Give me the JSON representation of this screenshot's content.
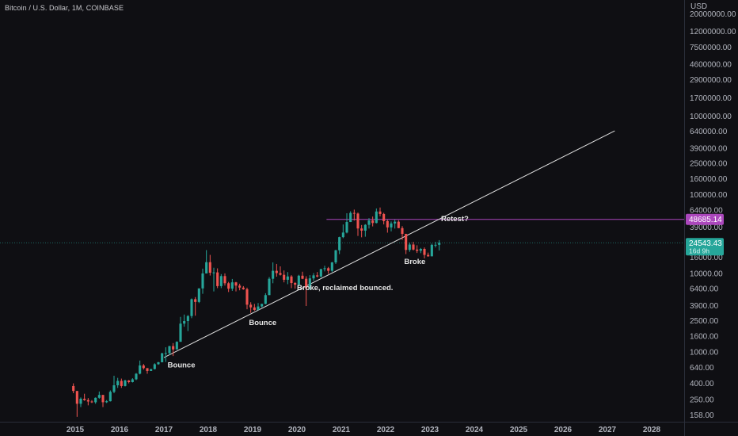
{
  "header": {
    "title": "Bitcoin / U.S. Dollar, 1M, COINBASE"
  },
  "colors": {
    "up": "#26a69a",
    "down": "#ef5350",
    "trendline": "#e0e0e0",
    "resistance": "#ab47bc",
    "price_line": "#26a69a",
    "background": "#0f0f13"
  },
  "chart_data": {
    "type": "candlestick",
    "title": "Bitcoin / U.S. Dollar, 1M, COINBASE",
    "currency_label": "USD",
    "y_scale": "log",
    "ylim": [
      130,
      30000000
    ],
    "xlim": [
      "2014-10",
      "2028-08"
    ],
    "x_ticks": [
      "2015",
      "2016",
      "2017",
      "2018",
      "2019",
      "2020",
      "2021",
      "2022",
      "2023",
      "2024",
      "2025",
      "2026",
      "2027",
      "2028"
    ],
    "y_ticks": [
      "20000000.00",
      "12000000.00",
      "7500000.00",
      "4600000.00",
      "2900000.00",
      "1700000.00",
      "1000000.00",
      "640000.00",
      "390000.00",
      "250000.00",
      "160000.00",
      "100000.00",
      "64000.00",
      "39000.00",
      "24000.00",
      "16000.00",
      "10000.00",
      "6400.00",
      "3900.00",
      "2500.00",
      "1600.00",
      "1000.00",
      "640.00",
      "400.00",
      "250.00",
      "158.00"
    ],
    "candles": [
      {
        "t": "2014-12",
        "o": 370,
        "h": 400,
        "l": 300,
        "c": 320
      },
      {
        "t": "2015-01",
        "o": 320,
        "h": 320,
        "l": 150,
        "c": 220
      },
      {
        "t": "2015-02",
        "o": 220,
        "h": 265,
        "l": 200,
        "c": 255
      },
      {
        "t": "2015-03",
        "o": 255,
        "h": 295,
        "l": 240,
        "c": 245
      },
      {
        "t": "2015-04",
        "o": 245,
        "h": 260,
        "l": 210,
        "c": 235
      },
      {
        "t": "2015-05",
        "o": 235,
        "h": 245,
        "l": 225,
        "c": 230
      },
      {
        "t": "2015-06",
        "o": 230,
        "h": 265,
        "l": 220,
        "c": 262
      },
      {
        "t": "2015-07",
        "o": 262,
        "h": 315,
        "l": 255,
        "c": 285
      },
      {
        "t": "2015-08",
        "o": 285,
        "h": 285,
        "l": 200,
        "c": 230
      },
      {
        "t": "2015-09",
        "o": 230,
        "h": 245,
        "l": 225,
        "c": 237
      },
      {
        "t": "2015-10",
        "o": 237,
        "h": 325,
        "l": 235,
        "c": 312
      },
      {
        "t": "2015-11",
        "o": 312,
        "h": 500,
        "l": 300,
        "c": 378
      },
      {
        "t": "2015-12",
        "o": 378,
        "h": 470,
        "l": 350,
        "c": 430
      },
      {
        "t": "2016-01",
        "o": 430,
        "h": 460,
        "l": 350,
        "c": 370
      },
      {
        "t": "2016-02",
        "o": 370,
        "h": 445,
        "l": 365,
        "c": 435
      },
      {
        "t": "2016-03",
        "o": 435,
        "h": 440,
        "l": 400,
        "c": 415
      },
      {
        "t": "2016-04",
        "o": 415,
        "h": 465,
        "l": 410,
        "c": 450
      },
      {
        "t": "2016-05",
        "o": 450,
        "h": 540,
        "l": 440,
        "c": 530
      },
      {
        "t": "2016-06",
        "o": 530,
        "h": 780,
        "l": 520,
        "c": 675
      },
      {
        "t": "2016-07",
        "o": 675,
        "h": 705,
        "l": 600,
        "c": 625
      },
      {
        "t": "2016-08",
        "o": 625,
        "h": 620,
        "l": 530,
        "c": 575
      },
      {
        "t": "2016-09",
        "o": 575,
        "h": 610,
        "l": 590,
        "c": 608
      },
      {
        "t": "2016-10",
        "o": 608,
        "h": 720,
        "l": 600,
        "c": 700
      },
      {
        "t": "2016-11",
        "o": 700,
        "h": 750,
        "l": 690,
        "c": 742
      },
      {
        "t": "2016-12",
        "o": 742,
        "h": 980,
        "l": 740,
        "c": 963
      },
      {
        "t": "2017-01",
        "o": 963,
        "h": 1150,
        "l": 750,
        "c": 970
      },
      {
        "t": "2017-02",
        "o": 970,
        "h": 1200,
        "l": 920,
        "c": 1190
      },
      {
        "t": "2017-03",
        "o": 1190,
        "h": 1300,
        "l": 890,
        "c": 1080
      },
      {
        "t": "2017-04",
        "o": 1080,
        "h": 1370,
        "l": 1080,
        "c": 1350
      },
      {
        "t": "2017-05",
        "o": 1350,
        "h": 2800,
        "l": 1350,
        "c": 2300
      },
      {
        "t": "2017-06",
        "o": 2300,
        "h": 3000,
        "l": 2100,
        "c": 2480
      },
      {
        "t": "2017-07",
        "o": 2480,
        "h": 2950,
        "l": 1850,
        "c": 2870
      },
      {
        "t": "2017-08",
        "o": 2870,
        "h": 4800,
        "l": 2700,
        "c": 4700
      },
      {
        "t": "2017-09",
        "o": 4700,
        "h": 5000,
        "l": 2900,
        "c": 4340
      },
      {
        "t": "2017-10",
        "o": 4340,
        "h": 6450,
        "l": 4200,
        "c": 6450
      },
      {
        "t": "2017-11",
        "o": 6450,
        "h": 11500,
        "l": 5500,
        "c": 10000
      },
      {
        "t": "2017-12",
        "o": 10000,
        "h": 19800,
        "l": 10000,
        "c": 13900
      },
      {
        "t": "2018-01",
        "o": 13900,
        "h": 17200,
        "l": 9400,
        "c": 10200
      },
      {
        "t": "2018-02",
        "o": 10200,
        "h": 11800,
        "l": 5900,
        "c": 10300
      },
      {
        "t": "2018-03",
        "o": 10300,
        "h": 11600,
        "l": 6500,
        "c": 6900
      },
      {
        "t": "2018-04",
        "o": 6900,
        "h": 9800,
        "l": 6500,
        "c": 9250
      },
      {
        "t": "2018-05",
        "o": 9250,
        "h": 10000,
        "l": 7000,
        "c": 7500
      },
      {
        "t": "2018-06",
        "o": 7500,
        "h": 7800,
        "l": 5800,
        "c": 6400
      },
      {
        "t": "2018-07",
        "o": 6400,
        "h": 8500,
        "l": 6000,
        "c": 7700
      },
      {
        "t": "2018-08",
        "o": 7700,
        "h": 7800,
        "l": 5900,
        "c": 7000
      },
      {
        "t": "2018-09",
        "o": 7000,
        "h": 7400,
        "l": 6100,
        "c": 6600
      },
      {
        "t": "2018-10",
        "o": 6600,
        "h": 6900,
        "l": 6200,
        "c": 6300
      },
      {
        "t": "2018-11",
        "o": 6300,
        "h": 6600,
        "l": 3500,
        "c": 4000
      },
      {
        "t": "2018-12",
        "o": 4000,
        "h": 4300,
        "l": 3150,
        "c": 3700
      },
      {
        "t": "2019-01",
        "o": 3700,
        "h": 4100,
        "l": 3350,
        "c": 3430
      },
      {
        "t": "2019-02",
        "o": 3430,
        "h": 4200,
        "l": 3400,
        "c": 3800
      },
      {
        "t": "2019-03",
        "o": 3800,
        "h": 4100,
        "l": 3700,
        "c": 4100
      },
      {
        "t": "2019-04",
        "o": 4100,
        "h": 5600,
        "l": 4050,
        "c": 5300
      },
      {
        "t": "2019-05",
        "o": 5300,
        "h": 9000,
        "l": 5300,
        "c": 8550
      },
      {
        "t": "2019-06",
        "o": 8550,
        "h": 13800,
        "l": 7500,
        "c": 10800
      },
      {
        "t": "2019-07",
        "o": 10800,
        "h": 13200,
        "l": 9100,
        "c": 10100
      },
      {
        "t": "2019-08",
        "o": 10100,
        "h": 12300,
        "l": 9400,
        "c": 9600
      },
      {
        "t": "2019-09",
        "o": 9600,
        "h": 10900,
        "l": 7700,
        "c": 8300
      },
      {
        "t": "2019-10",
        "o": 8300,
        "h": 10400,
        "l": 7300,
        "c": 9150
      },
      {
        "t": "2019-11",
        "o": 9150,
        "h": 9500,
        "l": 6500,
        "c": 7550
      },
      {
        "t": "2019-12",
        "o": 7550,
        "h": 7750,
        "l": 6400,
        "c": 7200
      },
      {
        "t": "2020-01",
        "o": 7200,
        "h": 9600,
        "l": 6850,
        "c": 9350
      },
      {
        "t": "2020-02",
        "o": 9350,
        "h": 10500,
        "l": 8450,
        "c": 8550
      },
      {
        "t": "2020-03",
        "o": 8550,
        "h": 9200,
        "l": 3850,
        "c": 6450
      },
      {
        "t": "2020-04",
        "o": 6450,
        "h": 9500,
        "l": 6150,
        "c": 8650
      },
      {
        "t": "2020-05",
        "o": 8650,
        "h": 10100,
        "l": 8100,
        "c": 9450
      },
      {
        "t": "2020-06",
        "o": 9450,
        "h": 10400,
        "l": 8900,
        "c": 9140
      },
      {
        "t": "2020-07",
        "o": 9140,
        "h": 11450,
        "l": 8900,
        "c": 11350
      },
      {
        "t": "2020-08",
        "o": 11350,
        "h": 12500,
        "l": 10600,
        "c": 11650
      },
      {
        "t": "2020-09",
        "o": 11650,
        "h": 12100,
        "l": 9900,
        "c": 10800
      },
      {
        "t": "2020-10",
        "o": 10800,
        "h": 14000,
        "l": 10400,
        "c": 13800
      },
      {
        "t": "2020-11",
        "o": 13800,
        "h": 19900,
        "l": 13200,
        "c": 19700
      },
      {
        "t": "2020-12",
        "o": 19700,
        "h": 29300,
        "l": 17600,
        "c": 28950
      },
      {
        "t": "2021-01",
        "o": 28950,
        "h": 41900,
        "l": 28100,
        "c": 33100
      },
      {
        "t": "2021-02",
        "o": 33100,
        "h": 58300,
        "l": 32300,
        "c": 45100
      },
      {
        "t": "2021-03",
        "o": 45100,
        "h": 61700,
        "l": 45000,
        "c": 58800
      },
      {
        "t": "2021-04",
        "o": 58800,
        "h": 64800,
        "l": 47000,
        "c": 57700
      },
      {
        "t": "2021-05",
        "o": 57700,
        "h": 59500,
        "l": 30000,
        "c": 37300
      },
      {
        "t": "2021-06",
        "o": 37300,
        "h": 41300,
        "l": 28800,
        "c": 35000
      },
      {
        "t": "2021-07",
        "o": 35000,
        "h": 42300,
        "l": 29300,
        "c": 41500
      },
      {
        "t": "2021-08",
        "o": 41500,
        "h": 50500,
        "l": 37300,
        "c": 47100
      },
      {
        "t": "2021-09",
        "o": 47100,
        "h": 52900,
        "l": 39600,
        "c": 43800
      },
      {
        "t": "2021-10",
        "o": 43800,
        "h": 67000,
        "l": 43300,
        "c": 61300
      },
      {
        "t": "2021-11",
        "o": 61300,
        "h": 69000,
        "l": 53300,
        "c": 57000
      },
      {
        "t": "2021-12",
        "o": 57000,
        "h": 59000,
        "l": 42000,
        "c": 46300
      },
      {
        "t": "2022-01",
        "o": 46300,
        "h": 48000,
        "l": 33000,
        "c": 38500
      },
      {
        "t": "2022-02",
        "o": 38500,
        "h": 45800,
        "l": 34300,
        "c": 43200
      },
      {
        "t": "2022-03",
        "o": 43200,
        "h": 48200,
        "l": 37200,
        "c": 45500
      },
      {
        "t": "2022-04",
        "o": 45500,
        "h": 47400,
        "l": 37600,
        "c": 37700
      },
      {
        "t": "2022-05",
        "o": 37700,
        "h": 40000,
        "l": 26700,
        "c": 31800
      },
      {
        "t": "2022-06",
        "o": 31800,
        "h": 31900,
        "l": 17600,
        "c": 19900
      },
      {
        "t": "2022-07",
        "o": 19900,
        "h": 24700,
        "l": 18800,
        "c": 23300
      },
      {
        "t": "2022-08",
        "o": 23300,
        "h": 25200,
        "l": 19600,
        "c": 20100
      },
      {
        "t": "2022-09",
        "o": 20100,
        "h": 22800,
        "l": 18200,
        "c": 19400
      },
      {
        "t": "2022-10",
        "o": 19400,
        "h": 21100,
        "l": 18100,
        "c": 20500
      },
      {
        "t": "2022-11",
        "o": 20500,
        "h": 21400,
        "l": 15500,
        "c": 17200
      },
      {
        "t": "2022-12",
        "o": 17200,
        "h": 18400,
        "l": 16300,
        "c": 16500
      },
      {
        "t": "2023-01",
        "o": 16500,
        "h": 23900,
        "l": 16500,
        "c": 23100
      },
      {
        "t": "2023-02",
        "o": 23100,
        "h": 25200,
        "l": 21400,
        "c": 23100
      },
      {
        "t": "2023-03",
        "o": 23100,
        "h": 26500,
        "l": 19600,
        "c": 24543
      }
    ],
    "trendline": {
      "start": {
        "t": "2017-01",
        "price": 850
      },
      "end": {
        "t": "2027-03",
        "price": 650000
      }
    },
    "resistance": {
      "price": 48685.14,
      "from": "2020-09",
      "label": "48685.14"
    },
    "current_price": {
      "price": 24543.43,
      "label": "24543.43",
      "countdown": "16d 9h"
    },
    "annotations": [
      {
        "text": "Retest?",
        "t": "2023-04",
        "price": 46000
      },
      {
        "text": "Broke",
        "t": "2022-06",
        "price": 13200
      },
      {
        "text": "Broke, reclaimed bounced.",
        "t": "2020-01",
        "price": 6100
      },
      {
        "text": "Bounce",
        "t": "2018-12",
        "price": 2220
      },
      {
        "text": "Bounce",
        "t": "2017-02",
        "price": 640
      }
    ]
  }
}
